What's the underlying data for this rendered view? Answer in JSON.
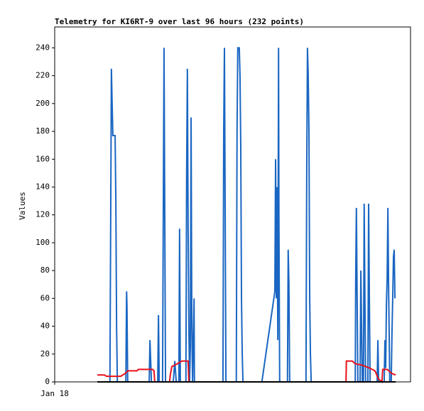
{
  "chart_data": {
    "type": "line",
    "title": "Telemetry for KI6RT-9 over last 96 hours (232 points)",
    "y_label": "Values",
    "xlim": [
      0,
      96
    ],
    "xticks": [
      {
        "value": 0,
        "label": "Jan 18"
      }
    ],
    "ylim": [
      0,
      255
    ],
    "yticks": [
      0,
      20,
      40,
      60,
      80,
      100,
      120,
      140,
      160,
      180,
      200,
      220,
      240
    ],
    "series": [
      {
        "color": "#1a66c2",
        "x": [
          11.5,
          14.9,
          15.1,
          15.3,
          15.5,
          15.7,
          16.3,
          16.5,
          16.7,
          16.9,
          19.2,
          19.4,
          19.5,
          19.7,
          25.5,
          25.7,
          25.9,
          26.1,
          27.8,
          28.0,
          28.2,
          29.1,
          29.3,
          29.5,
          29.7,
          29.9,
          32.0,
          32.4,
          32.8,
          33.5,
          33.7,
          33.9,
          35.4,
          35.6,
          35.8,
          36.0,
          36.2,
          36.4,
          36.6,
          36.8,
          37.0,
          37.2,
          37.6,
          37.7,
          45.4,
          45.6,
          45.8,
          46.0,
          46.2,
          49.0,
          49.2,
          49.4,
          49.8,
          50.0,
          50.2,
          50.4,
          50.6,
          50.8,
          55.9,
          59.4,
          59.6,
          59.8,
          60.0,
          60.2,
          60.4,
          60.5,
          60.7,
          62.8,
          63.0,
          63.2,
          63.4,
          67.8,
          68.0,
          68.2,
          68.4,
          68.6,
          68.8,
          69.0,
          69.2,
          81.1,
          81.2,
          81.4,
          81.6,
          81.8,
          82.4,
          82.6,
          82.8,
          83.0,
          83.3,
          83.5,
          83.7,
          83.9,
          84.5,
          84.7,
          84.9,
          85.1,
          87.0,
          87.2,
          87.4,
          88.9,
          89.1,
          89.3,
          89.5,
          89.7,
          89.9,
          90.1,
          90.2,
          90.4,
          90.8,
          91.0,
          91.2,
          91.4,
          91.6,
          91.8
        ],
        "values": [
          0,
          0,
          110,
          225,
          200,
          177,
          177,
          130,
          40,
          0,
          0,
          65,
          55,
          0,
          0,
          30,
          15,
          0,
          0,
          48,
          0,
          0,
          120,
          240,
          120,
          0,
          0,
          15,
          0,
          0,
          110,
          0,
          0,
          150,
          225,
          110,
          40,
          0,
          25,
          190,
          40,
          0,
          60,
          0,
          0,
          180,
          240,
          120,
          0,
          0,
          180,
          240,
          240,
          220,
          170,
          60,
          20,
          0,
          0,
          65,
          160,
          60,
          140,
          30,
          240,
          120,
          0,
          0,
          95,
          70,
          0,
          0,
          150,
          240,
          220,
          180,
          60,
          20,
          0,
          0,
          70,
          125,
          60,
          0,
          0,
          80,
          40,
          0,
          0,
          128,
          60,
          0,
          0,
          128,
          60,
          0,
          0,
          30,
          0,
          0,
          30,
          10,
          55,
          75,
          125,
          65,
          45,
          0,
          0,
          35,
          60,
          90,
          95,
          60
        ]
      },
      {
        "color": "#e8101a",
        "x": [
          11.5,
          13.4,
          14.0,
          17.8,
          19.0,
          19.7,
          22.2,
          22.6,
          26.4,
          26.8,
          27.0,
          31.0,
          31.2,
          31.6,
          33.1,
          34.3,
          36.0,
          36.2,
          78.6,
          78.7,
          80.3,
          81.1,
          83.0,
          84.9,
          86.4,
          87.4,
          88.3,
          88.5,
          89.7,
          91.0,
          92.0
        ],
        "values": [
          5,
          5,
          4,
          4,
          6,
          8,
          8,
          9,
          9,
          8,
          0,
          0,
          5,
          11,
          13,
          15,
          15,
          0,
          0,
          15,
          15,
          13,
          12,
          10,
          8,
          2,
          0,
          9,
          9,
          6,
          5
        ]
      },
      {
        "color": "#000000",
        "x": [
          11.5,
          92.0
        ],
        "values": [
          0,
          0
        ]
      }
    ]
  }
}
